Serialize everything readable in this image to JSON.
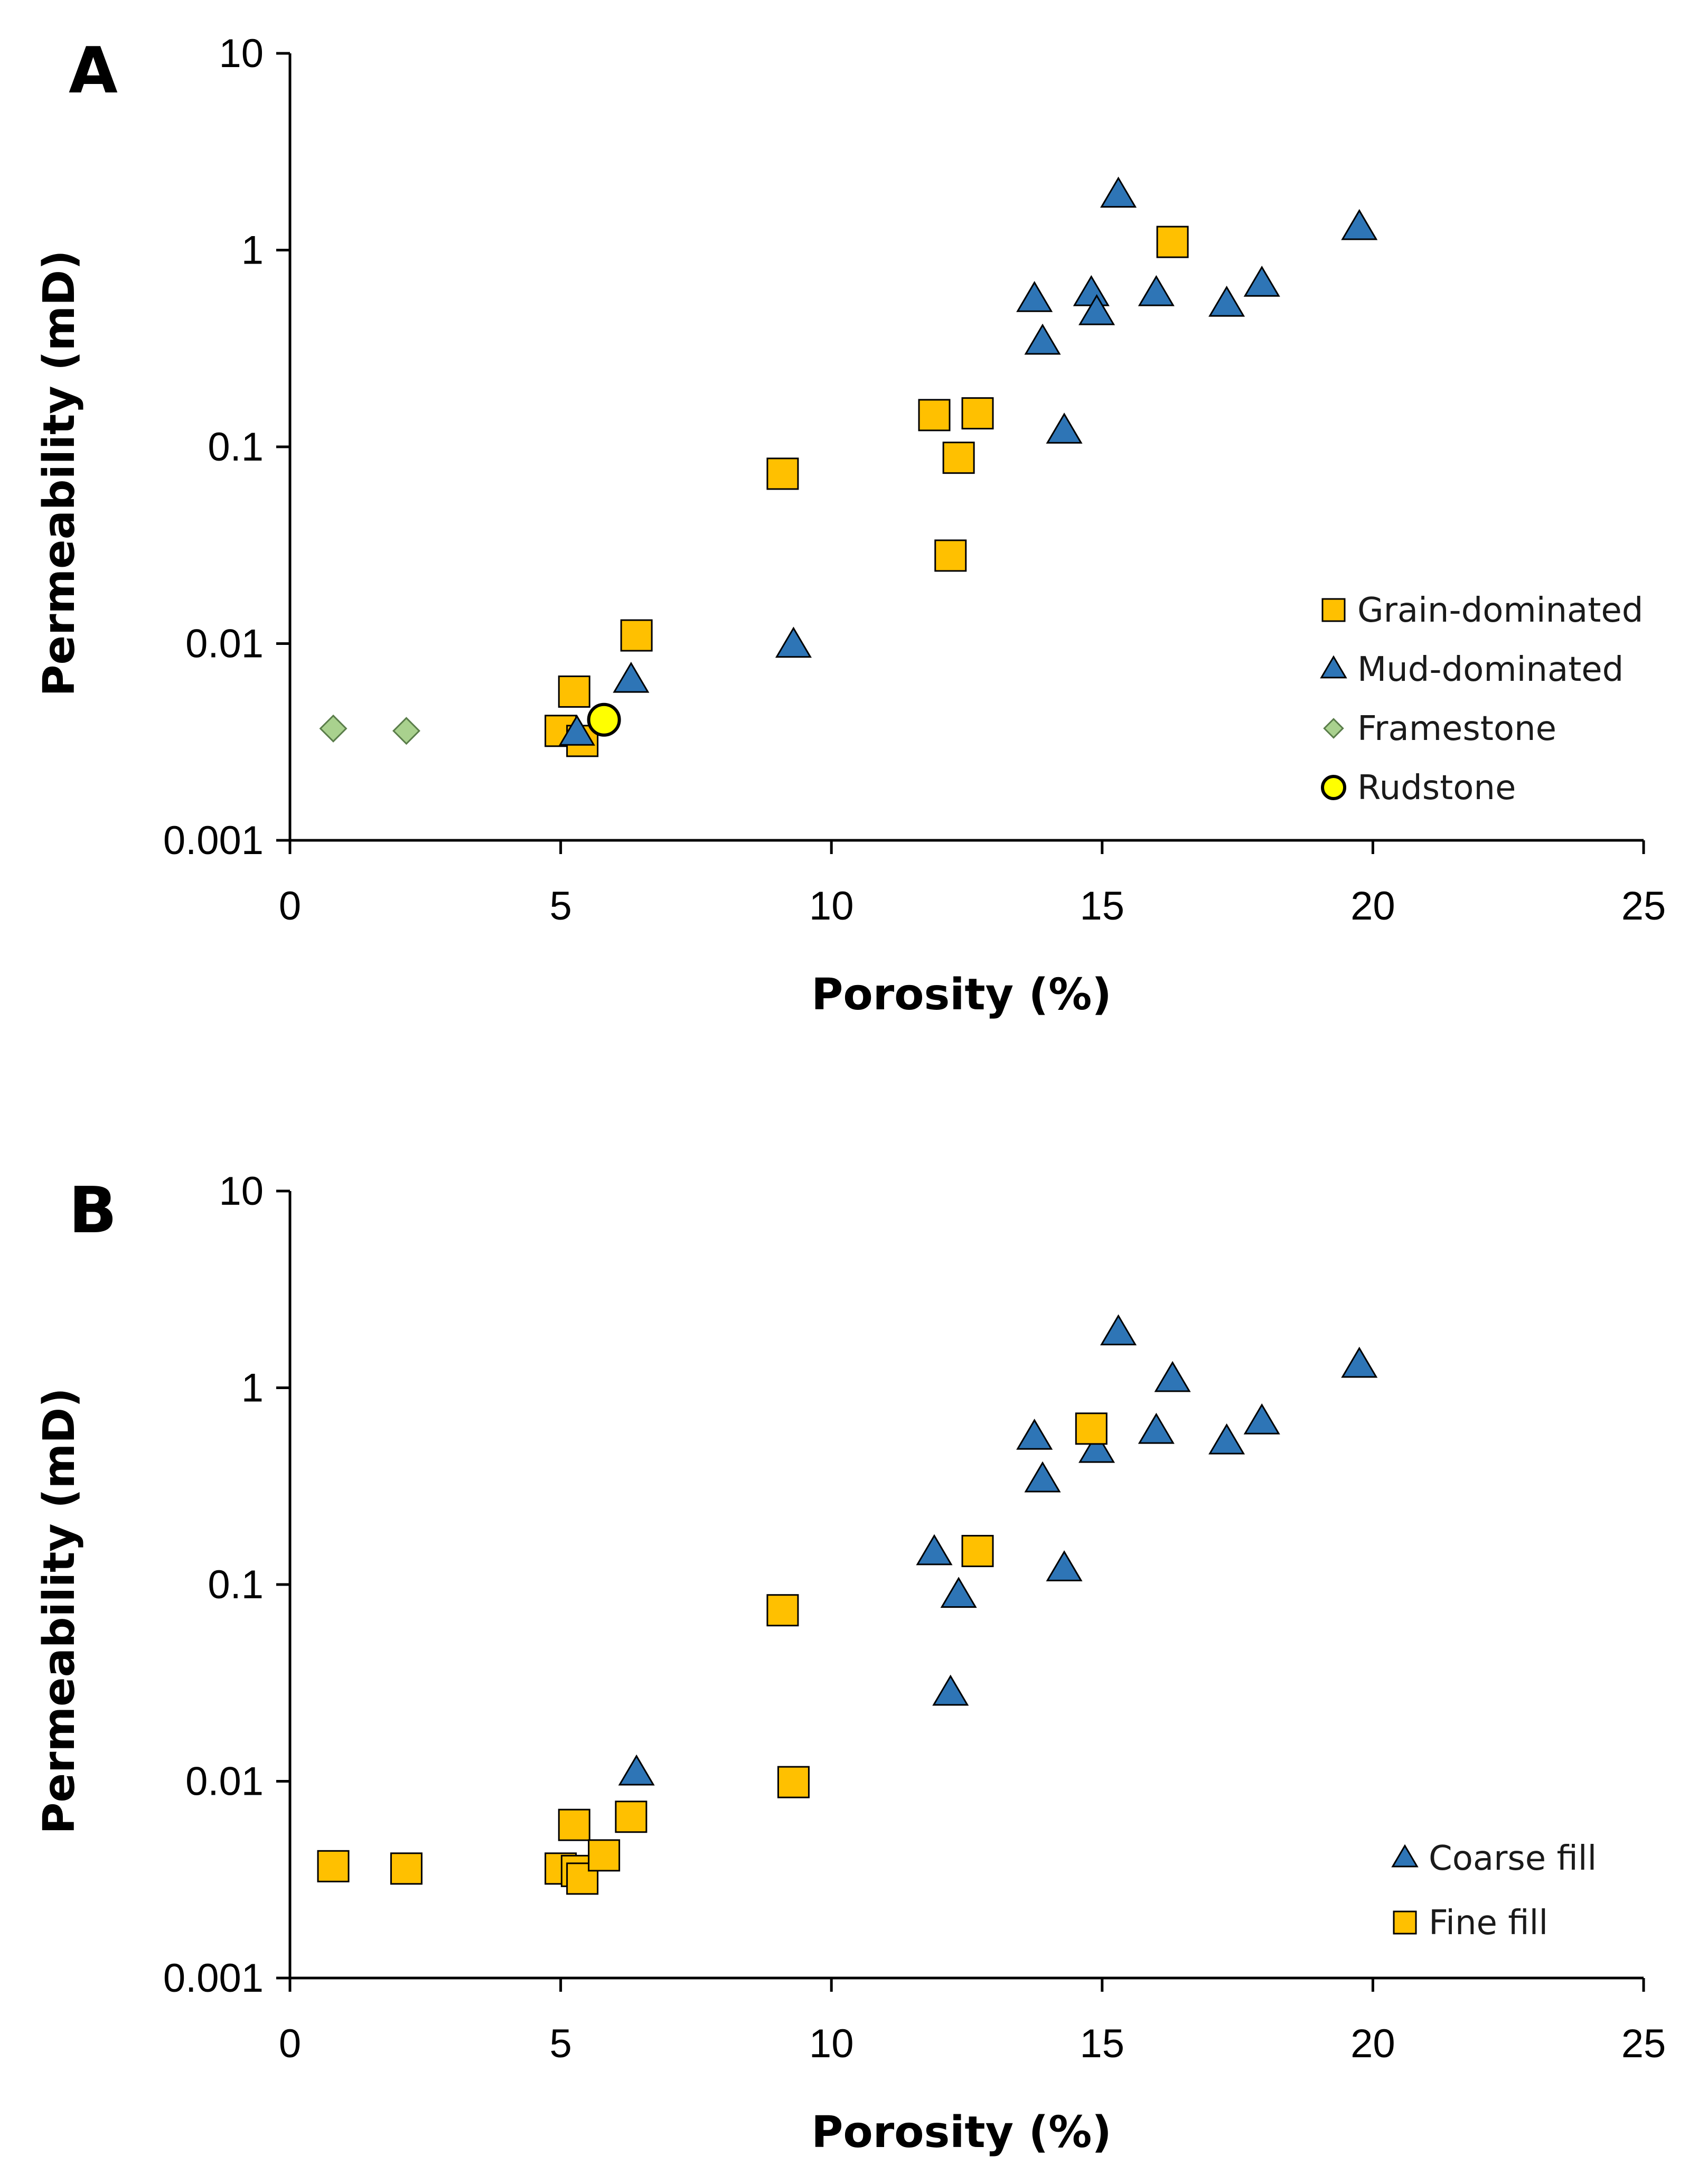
{
  "chart_data": [
    {
      "type": "scatter",
      "panel_label": "A",
      "title": "",
      "xlabel": "Porosity (%)",
      "ylabel": "Permeability (mD)",
      "xscale": "linear",
      "yscale": "log",
      "xlim": [
        0,
        25
      ],
      "ylim": [
        0.001,
        10
      ],
      "xticks": [
        "0",
        "5",
        "10",
        "15",
        "20",
        "25"
      ],
      "yticks": [
        "0.001",
        "0.01",
        "0.1",
        "1",
        "10"
      ],
      "legend_position": "right-middle",
      "series": [
        {
          "name": "Grain-dominated",
          "marker": "square",
          "color": "#FFC000",
          "points": [
            {
              "x": 5.0,
              "y": 0.0036
            },
            {
              "x": 5.25,
              "y": 0.0057
            },
            {
              "x": 5.4,
              "y": 0.0032
            },
            {
              "x": 6.4,
              "y": 0.011
            },
            {
              "x": 9.1,
              "y": 0.073
            },
            {
              "x": 11.9,
              "y": 0.145
            },
            {
              "x": 12.2,
              "y": 0.028
            },
            {
              "x": 12.35,
              "y": 0.088
            },
            {
              "x": 12.7,
              "y": 0.148
            },
            {
              "x": 16.3,
              "y": 1.1
            }
          ]
        },
        {
          "name": "Mud-dominated",
          "marker": "triangle",
          "color": "#2E75B6",
          "points": [
            {
              "x": 5.3,
              "y": 0.0035
            },
            {
              "x": 6.3,
              "y": 0.0065
            },
            {
              "x": 9.3,
              "y": 0.0098
            },
            {
              "x": 13.75,
              "y": 0.56
            },
            {
              "x": 13.9,
              "y": 0.34
            },
            {
              "x": 14.3,
              "y": 0.12
            },
            {
              "x": 14.8,
              "y": 0.6
            },
            {
              "x": 14.9,
              "y": 0.48
            },
            {
              "x": 15.3,
              "y": 1.9
            },
            {
              "x": 16.0,
              "y": 0.6
            },
            {
              "x": 17.3,
              "y": 0.53
            },
            {
              "x": 17.95,
              "y": 0.67
            },
            {
              "x": 19.75,
              "y": 1.3
            }
          ]
        },
        {
          "name": "Framestone",
          "marker": "diamond",
          "color": "#A9D18E",
          "points": [
            {
              "x": 0.8,
              "y": 0.0037
            },
            {
              "x": 2.15,
              "y": 0.0036
            }
          ]
        },
        {
          "name": "Rudstone",
          "marker": "circle",
          "color": "#FFFF00",
          "points": [
            {
              "x": 5.8,
              "y": 0.0041
            }
          ]
        }
      ]
    },
    {
      "type": "scatter",
      "panel_label": "B",
      "title": "",
      "xlabel": "Porosity (%)",
      "ylabel": "Permeability (mD)",
      "xscale": "linear",
      "yscale": "log",
      "xlim": [
        0,
        25
      ],
      "ylim": [
        0.001,
        10
      ],
      "xticks": [
        "0",
        "5",
        "10",
        "15",
        "20",
        "25"
      ],
      "yticks": [
        "0.001",
        "0.01",
        "0.1",
        "1",
        "10"
      ],
      "legend_position": "bottom-right",
      "series": [
        {
          "name": "Coarse fill",
          "marker": "triangle",
          "color": "#2E75B6",
          "points": [
            {
              "x": 6.4,
              "y": 0.011
            },
            {
              "x": 11.9,
              "y": 0.145
            },
            {
              "x": 12.2,
              "y": 0.028
            },
            {
              "x": 12.35,
              "y": 0.088
            },
            {
              "x": 13.75,
              "y": 0.56
            },
            {
              "x": 13.9,
              "y": 0.34
            },
            {
              "x": 14.3,
              "y": 0.12
            },
            {
              "x": 14.9,
              "y": 0.48
            },
            {
              "x": 15.3,
              "y": 1.9
            },
            {
              "x": 16.0,
              "y": 0.6
            },
            {
              "x": 16.3,
              "y": 1.1
            },
            {
              "x": 17.3,
              "y": 0.53
            },
            {
              "x": 17.95,
              "y": 0.67
            },
            {
              "x": 19.75,
              "y": 1.3
            }
          ]
        },
        {
          "name": "Fine fill",
          "marker": "square",
          "color": "#FFC000",
          "points": [
            {
              "x": 0.8,
              "y": 0.0037
            },
            {
              "x": 2.15,
              "y": 0.0036
            },
            {
              "x": 5.0,
              "y": 0.0036
            },
            {
              "x": 5.25,
              "y": 0.006
            },
            {
              "x": 5.3,
              "y": 0.0035
            },
            {
              "x": 5.4,
              "y": 0.0032
            },
            {
              "x": 5.8,
              "y": 0.0042
            },
            {
              "x": 6.3,
              "y": 0.0066
            },
            {
              "x": 9.1,
              "y": 0.074
            },
            {
              "x": 9.3,
              "y": 0.0099
            },
            {
              "x": 12.7,
              "y": 0.148
            },
            {
              "x": 14.8,
              "y": 0.62
            }
          ]
        }
      ]
    }
  ]
}
